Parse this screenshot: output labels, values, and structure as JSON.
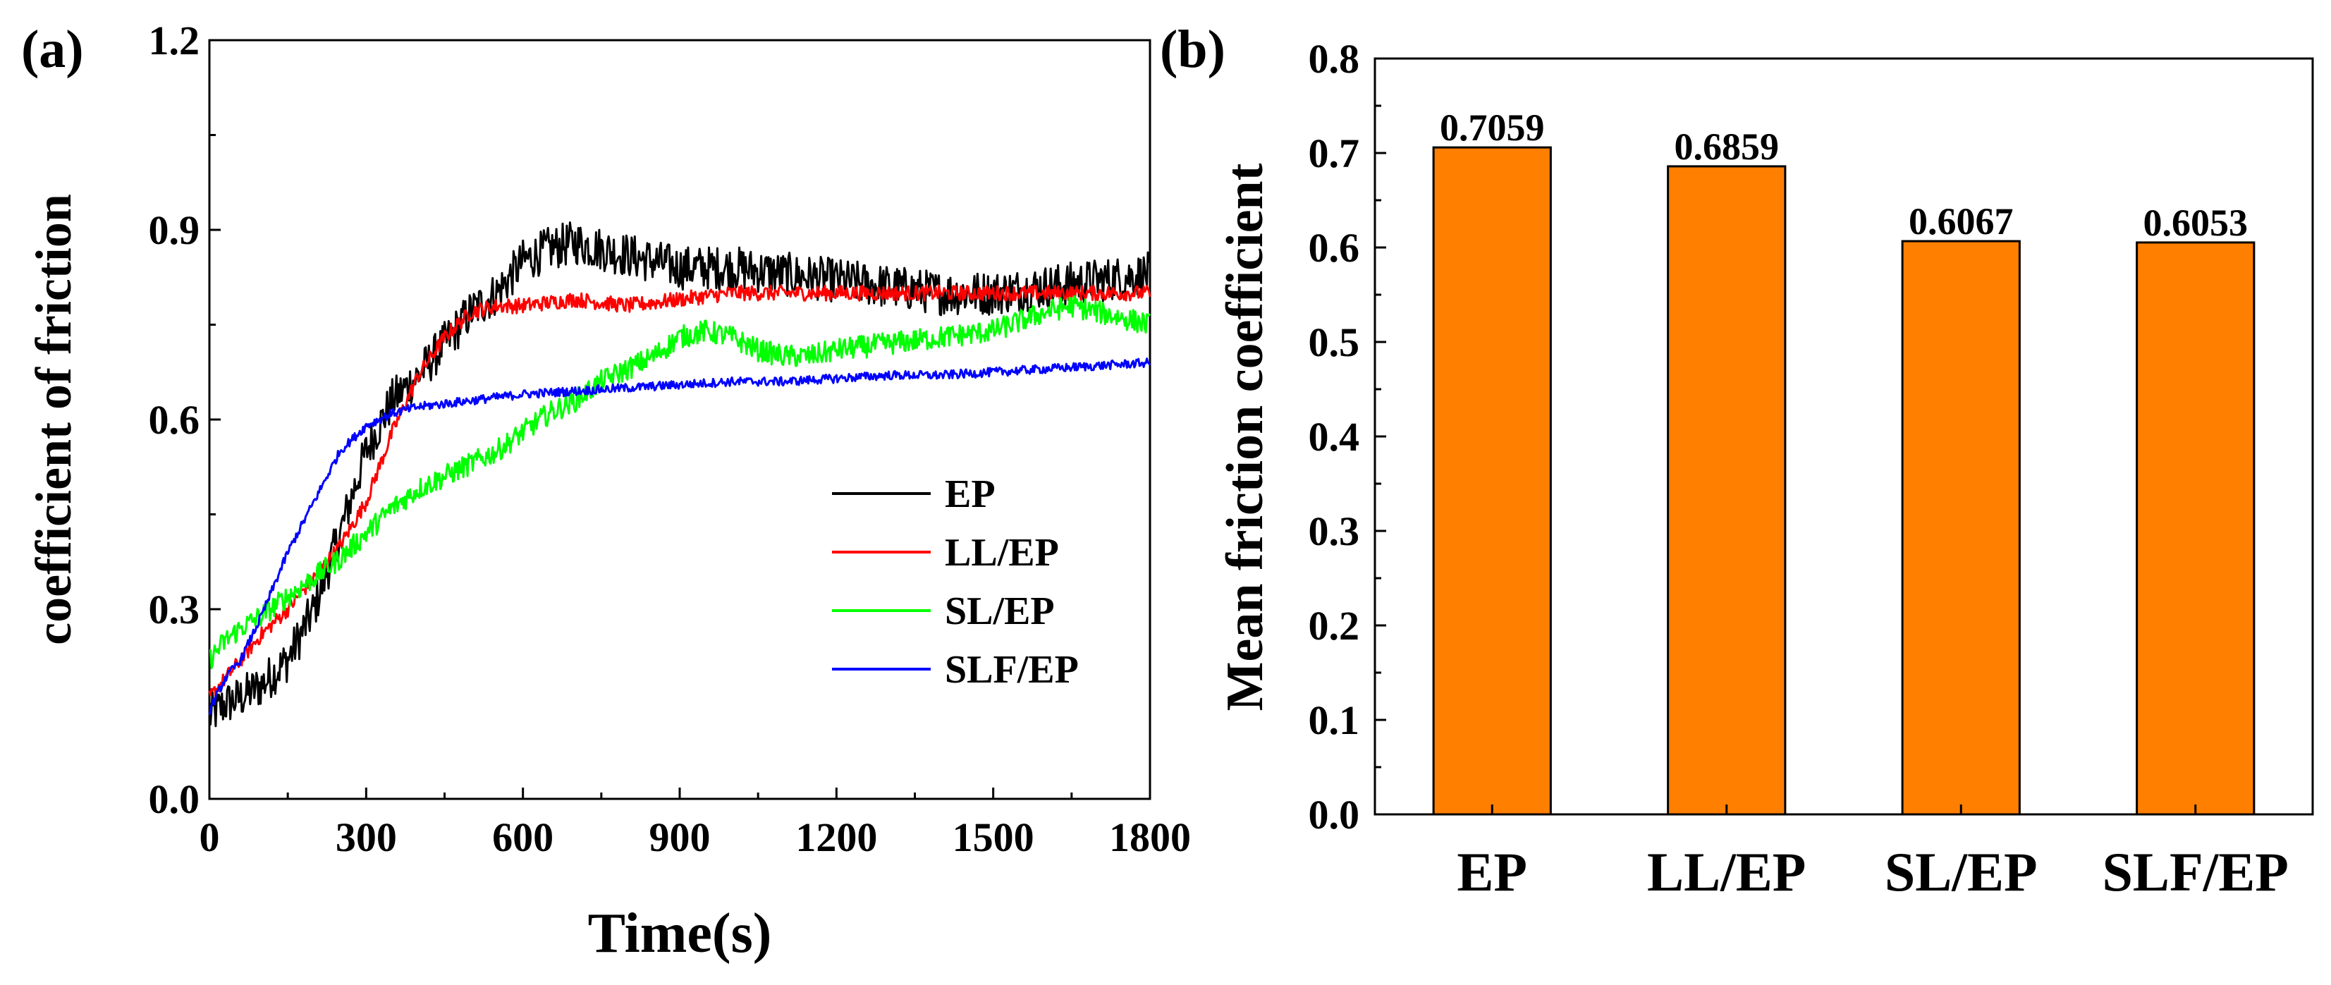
{
  "panel_a": {
    "label": "(a)",
    "xlabel": "Time(s)",
    "ylabel": "coefficient of friction",
    "xlim": [
      0,
      1800
    ],
    "ylim": [
      0,
      1.2
    ],
    "xticks": [
      0,
      300,
      600,
      900,
      1200,
      1500,
      1800
    ],
    "yticks": [
      0.0,
      0.3,
      0.6,
      0.9,
      1.2
    ],
    "xtick_labels": [
      "0",
      "300",
      "600",
      "900",
      "1200",
      "1500",
      "1800"
    ],
    "ytick_labels": [
      "0.0",
      "0.3",
      "0.6",
      "0.9",
      "1.2"
    ]
  },
  "panel_b": {
    "label": "(b)",
    "ylabel": "Mean friction coefficient",
    "yticks": [
      0.0,
      0.1,
      0.2,
      0.3,
      0.4,
      0.5,
      0.6,
      0.7,
      0.8
    ],
    "ytick_labels": [
      "0.0",
      "0.1",
      "0.2",
      "0.3",
      "0.4",
      "0.5",
      "0.6",
      "0.7",
      "0.8"
    ]
  },
  "chart_data": [
    {
      "type": "line",
      "title": "",
      "xlabel": "Time(s)",
      "ylabel": "coefficient of friction",
      "xlim": [
        0,
        1800
      ],
      "ylim": [
        0,
        1.2
      ],
      "legend_position": "lower-right",
      "series": [
        {
          "name": "EP",
          "color": "#000000",
          "noise": 0.035,
          "x": [
            0,
            30,
            60,
            100,
            150,
            200,
            250,
            300,
            350,
            400,
            450,
            500,
            550,
            600,
            650,
            700,
            800,
            900,
            1000,
            1100,
            1200,
            1300,
            1400,
            1500,
            1600,
            1700,
            1800
          ],
          "y": [
            0.13,
            0.15,
            0.16,
            0.18,
            0.22,
            0.3,
            0.42,
            0.55,
            0.63,
            0.67,
            0.72,
            0.77,
            0.8,
            0.85,
            0.87,
            0.88,
            0.86,
            0.84,
            0.84,
            0.83,
            0.82,
            0.81,
            0.8,
            0.8,
            0.81,
            0.82,
            0.83
          ]
        },
        {
          "name": "LL/EP",
          "color": "#ff0000",
          "noise": 0.012,
          "x": [
            0,
            30,
            60,
            100,
            150,
            200,
            250,
            300,
            350,
            400,
            450,
            500,
            550,
            600,
            700,
            800,
            900,
            1000,
            1100,
            1200,
            1300,
            1400,
            1500,
            1600,
            1700,
            1800
          ],
          "y": [
            0.16,
            0.19,
            0.22,
            0.26,
            0.3,
            0.35,
            0.4,
            0.47,
            0.58,
            0.67,
            0.73,
            0.77,
            0.78,
            0.78,
            0.79,
            0.78,
            0.79,
            0.8,
            0.8,
            0.8,
            0.8,
            0.8,
            0.8,
            0.8,
            0.8,
            0.8
          ]
        },
        {
          "name": "SL/EP",
          "color": "#00ff00",
          "noise": 0.018,
          "x": [
            0,
            30,
            60,
            100,
            150,
            200,
            250,
            300,
            350,
            400,
            450,
            500,
            550,
            600,
            650,
            700,
            750,
            800,
            850,
            900,
            950,
            1000,
            1050,
            1100,
            1150,
            1200,
            1300,
            1400,
            1500,
            1600,
            1650,
            1700,
            1750,
            1800
          ],
          "y": [
            0.22,
            0.25,
            0.27,
            0.29,
            0.32,
            0.35,
            0.38,
            0.42,
            0.46,
            0.49,
            0.51,
            0.53,
            0.55,
            0.58,
            0.61,
            0.63,
            0.66,
            0.68,
            0.7,
            0.73,
            0.74,
            0.73,
            0.71,
            0.7,
            0.7,
            0.71,
            0.72,
            0.73,
            0.74,
            0.77,
            0.78,
            0.77,
            0.76,
            0.75
          ]
        },
        {
          "name": "SLF/EP",
          "color": "#0000ff",
          "noise": 0.007,
          "x": [
            0,
            30,
            60,
            100,
            150,
            200,
            250,
            300,
            350,
            400,
            450,
            500,
            600,
            700,
            800,
            900,
            1000,
            1100,
            1200,
            1300,
            1400,
            1500,
            1600,
            1700,
            1800
          ],
          "y": [
            0.14,
            0.19,
            0.22,
            0.29,
            0.39,
            0.47,
            0.55,
            0.59,
            0.61,
            0.62,
            0.625,
            0.63,
            0.64,
            0.645,
            0.65,
            0.655,
            0.66,
            0.66,
            0.665,
            0.67,
            0.67,
            0.675,
            0.68,
            0.685,
            0.69
          ]
        }
      ]
    },
    {
      "type": "bar",
      "title": "",
      "xlabel": "",
      "ylabel": "Mean friction coefficient",
      "ylim": [
        0,
        0.8
      ],
      "bar_color": "#ff7f00",
      "categories": [
        "EP",
        "LL/EP",
        "SL/EP",
        "SLF/EP"
      ],
      "values": [
        0.7059,
        0.6859,
        0.6067,
        0.6053
      ],
      "value_labels": [
        "0.7059",
        "0.6859",
        "0.6067",
        "0.6053"
      ]
    }
  ]
}
